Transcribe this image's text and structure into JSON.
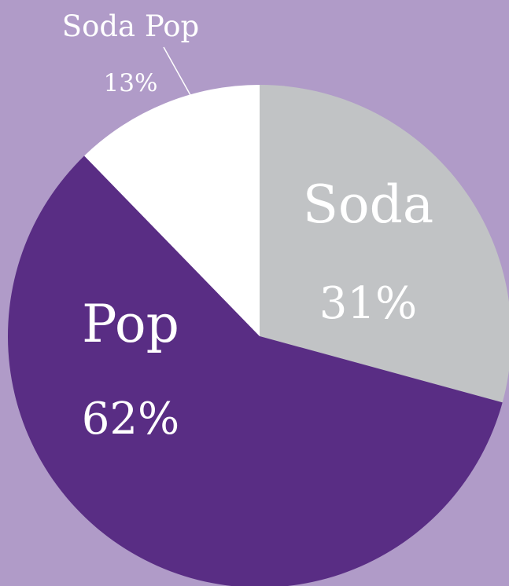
{
  "chart_data": {
    "type": "pie",
    "slices": [
      {
        "label": "Soda",
        "value_label": "31%",
        "value": 31,
        "color": "#c1c3c5"
      },
      {
        "label": "Pop",
        "value_label": "62%",
        "value": 62,
        "color": "#592d84"
      },
      {
        "label": "Soda Pop",
        "value_label": "13%",
        "value": 13,
        "color": "#ffffff"
      }
    ],
    "background_color": "#b09bc8",
    "legend": "none",
    "label_color": "#ffffff"
  }
}
